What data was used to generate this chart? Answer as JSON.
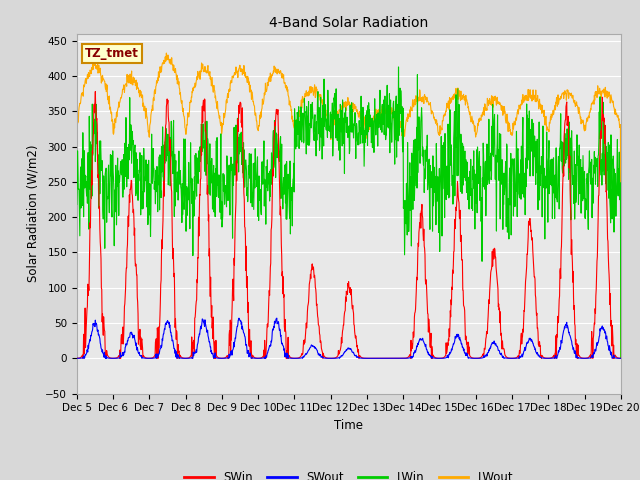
{
  "title": "4-Band Solar Radiation",
  "xlabel": "Time",
  "ylabel": "Solar Radiation (W/m2)",
  "ylim": [
    -50,
    460
  ],
  "xlim": [
    0,
    360
  ],
  "yticks": [
    -50,
    0,
    50,
    100,
    150,
    200,
    250,
    300,
    350,
    400,
    450
  ],
  "xtick_labels": [
    "Dec 5",
    "Dec 6",
    "Dec 7",
    "Dec 8",
    "Dec 9",
    "Dec 10",
    "Dec 11",
    "Dec 12",
    "Dec 13",
    "Dec 14",
    "Dec 15",
    "Dec 16",
    "Dec 17",
    "Dec 18",
    "Dec 19",
    "Dec 20"
  ],
  "xtick_positions": [
    0,
    24,
    48,
    72,
    96,
    120,
    144,
    168,
    192,
    216,
    240,
    264,
    288,
    312,
    336,
    360
  ],
  "legend_items": [
    "SWin",
    "SWout",
    "LWin",
    "LWout"
  ],
  "legend_colors": [
    "#ff0000",
    "#0000ff",
    "#00cc00",
    "#ffaa00"
  ],
  "annotation_text": "TZ_tmet",
  "annotation_bg": "#ffffcc",
  "annotation_border": "#cc8800",
  "plot_bg": "#e8e8e8",
  "grid_color": "#ffffff",
  "line_width": 0.8,
  "figsize": [
    6.4,
    4.8
  ],
  "dpi": 100
}
